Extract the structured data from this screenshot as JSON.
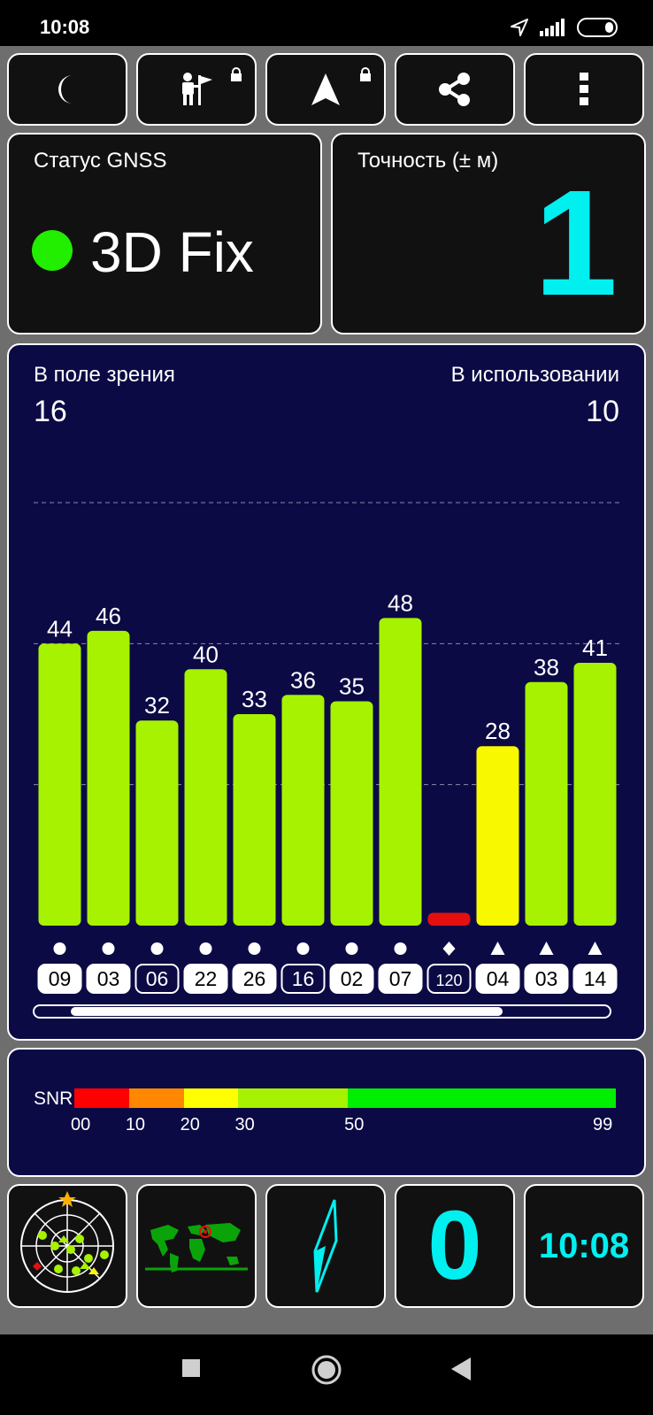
{
  "status_bar": {
    "time": "10:08",
    "icons": [
      "navigation-arrow-icon",
      "signal-icon",
      "battery-icon"
    ]
  },
  "toolbar": {
    "buttons": [
      {
        "icon": "moon-icon"
      },
      {
        "icon": "hiker-icon",
        "locked": true
      },
      {
        "icon": "navigation-icon",
        "locked": true
      },
      {
        "icon": "share-icon"
      },
      {
        "icon": "more-icon"
      }
    ]
  },
  "gnss": {
    "label": "Статус GNSS",
    "value": "3D Fix",
    "dot_color": "#22ee00"
  },
  "accuracy": {
    "label": "Точность (± м)",
    "value": "1"
  },
  "sky": {
    "in_view_label": "В поле зрения",
    "in_view": "16",
    "in_use_label": "В использовании",
    "in_use": "10"
  },
  "chart_data": {
    "type": "bar",
    "categories": [
      "09",
      "03",
      "06",
      "22",
      "26",
      "16",
      "02",
      "07",
      "120",
      "04",
      "03",
      "14"
    ],
    "values": [
      44,
      46,
      32,
      40,
      33,
      36,
      35,
      48,
      2,
      28,
      38,
      41
    ],
    "value_labels": [
      "44",
      "46",
      "32",
      "40",
      "33",
      "36",
      "35",
      "48",
      "",
      "28",
      "38",
      "41"
    ],
    "markers": [
      "circle",
      "circle",
      "circle",
      "circle",
      "circle",
      "circle",
      "circle",
      "circle",
      "diamond",
      "triangle",
      "triangle",
      "triangle"
    ],
    "outlined": [
      false,
      false,
      true,
      false,
      false,
      true,
      false,
      false,
      true,
      false,
      false,
      false
    ],
    "colors": [
      "#a6f200",
      "#a6f200",
      "#a6f200",
      "#a6f200",
      "#a6f200",
      "#a6f200",
      "#a6f200",
      "#a6f200",
      "#e41010",
      "#f8f800",
      "#a6f200",
      "#a6f200"
    ],
    "ylim": [
      0,
      66
    ],
    "gridlines": [
      22,
      44,
      66
    ],
    "grid": true
  },
  "snr": {
    "label": "SNR",
    "segments": [
      {
        "from": 0,
        "to": 10,
        "color": "#ff0000"
      },
      {
        "from": 10,
        "to": 20,
        "color": "#ff8800"
      },
      {
        "from": 20,
        "to": 30,
        "color": "#ffff00"
      },
      {
        "from": 30,
        "to": 50,
        "color": "#a6f200"
      },
      {
        "from": 50,
        "to": 99,
        "color": "#00ee00"
      }
    ],
    "ticks": [
      {
        "label": "00",
        "value": 0
      },
      {
        "label": "10",
        "value": 10
      },
      {
        "label": "20",
        "value": 20
      },
      {
        "label": "30",
        "value": 30
      },
      {
        "label": "50",
        "value": 50
      },
      {
        "label": "99",
        "value": 99
      }
    ],
    "scale_max": 99
  },
  "bottom_tiles": {
    "radar_icon": "sky-radar-icon",
    "map_icon": "world-map-icon",
    "compass_icon": "compass-needle-icon",
    "speed": "0",
    "clock": "10:08"
  },
  "nav": {
    "icons": [
      "recents-icon",
      "home-icon",
      "back-icon"
    ]
  }
}
